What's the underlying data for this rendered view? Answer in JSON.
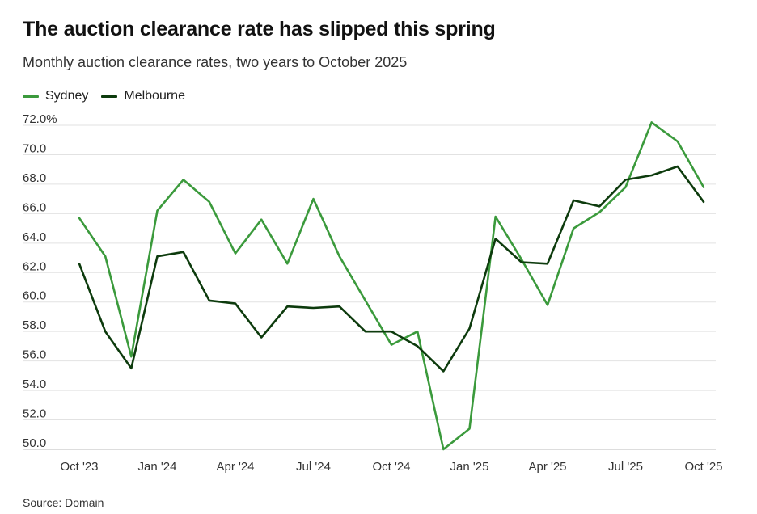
{
  "title": "The auction clearance rate has slipped this spring",
  "subtitle": "Monthly auction clearance rates, two years to October 2025",
  "source": "Source: Domain",
  "legend": [
    {
      "name": "Sydney",
      "color": "#3b9a3c"
    },
    {
      "name": "Melbourne",
      "color": "#0d3b0d"
    }
  ],
  "chart_data": {
    "type": "line",
    "x": [
      "Oct 2023",
      "Nov 2023",
      "Dec 2023",
      "Jan 2024",
      "Feb 2024",
      "Mar 2024",
      "Apr 2024",
      "May 2024",
      "Jun 2024",
      "Jul 2024",
      "Aug 2024",
      "Sep 2024",
      "Oct 2024",
      "Nov 2024",
      "Dec 2024",
      "Jan 2025",
      "Feb 2025",
      "Mar 2025",
      "Apr 2025",
      "May 2025",
      "Jun 2025",
      "Jul 2025",
      "Aug 2025",
      "Sep 2025",
      "Oct 2025"
    ],
    "x_tick_labels": [
      "Oct '23",
      "Jan '24",
      "Apr '24",
      "Jul '24",
      "Oct '24",
      "Jan '25",
      "Apr '25",
      "Jul '25",
      "Oct '25"
    ],
    "y_tick_labels": [
      "72.0%",
      "70.0",
      "68.0",
      "66.0",
      "64.0",
      "62.0",
      "60.0",
      "58.0",
      "56.0",
      "54.0",
      "52.0",
      "50.0"
    ],
    "ylim": [
      50,
      72
    ],
    "grid": true,
    "legend_position": "top-left",
    "series": [
      {
        "name": "Sydney",
        "color": "#3b9a3c",
        "values": [
          65.7,
          63.1,
          56.3,
          66.2,
          68.3,
          66.8,
          63.3,
          65.6,
          62.6,
          67.0,
          63.1,
          60.1,
          57.1,
          58.0,
          50.0,
          51.4,
          65.8,
          62.9,
          59.8,
          65.0,
          66.1,
          67.8,
          72.2,
          70.9,
          67.8
        ]
      },
      {
        "name": "Melbourne",
        "color": "#0d3b0d",
        "values": [
          62.6,
          58.0,
          55.5,
          63.1,
          63.4,
          60.1,
          59.9,
          57.6,
          59.7,
          59.6,
          59.7,
          58.0,
          58.0,
          57.0,
          55.3,
          58.2,
          64.3,
          62.7,
          62.6,
          66.9,
          66.5,
          68.3,
          68.6,
          69.2,
          66.8
        ]
      }
    ]
  }
}
